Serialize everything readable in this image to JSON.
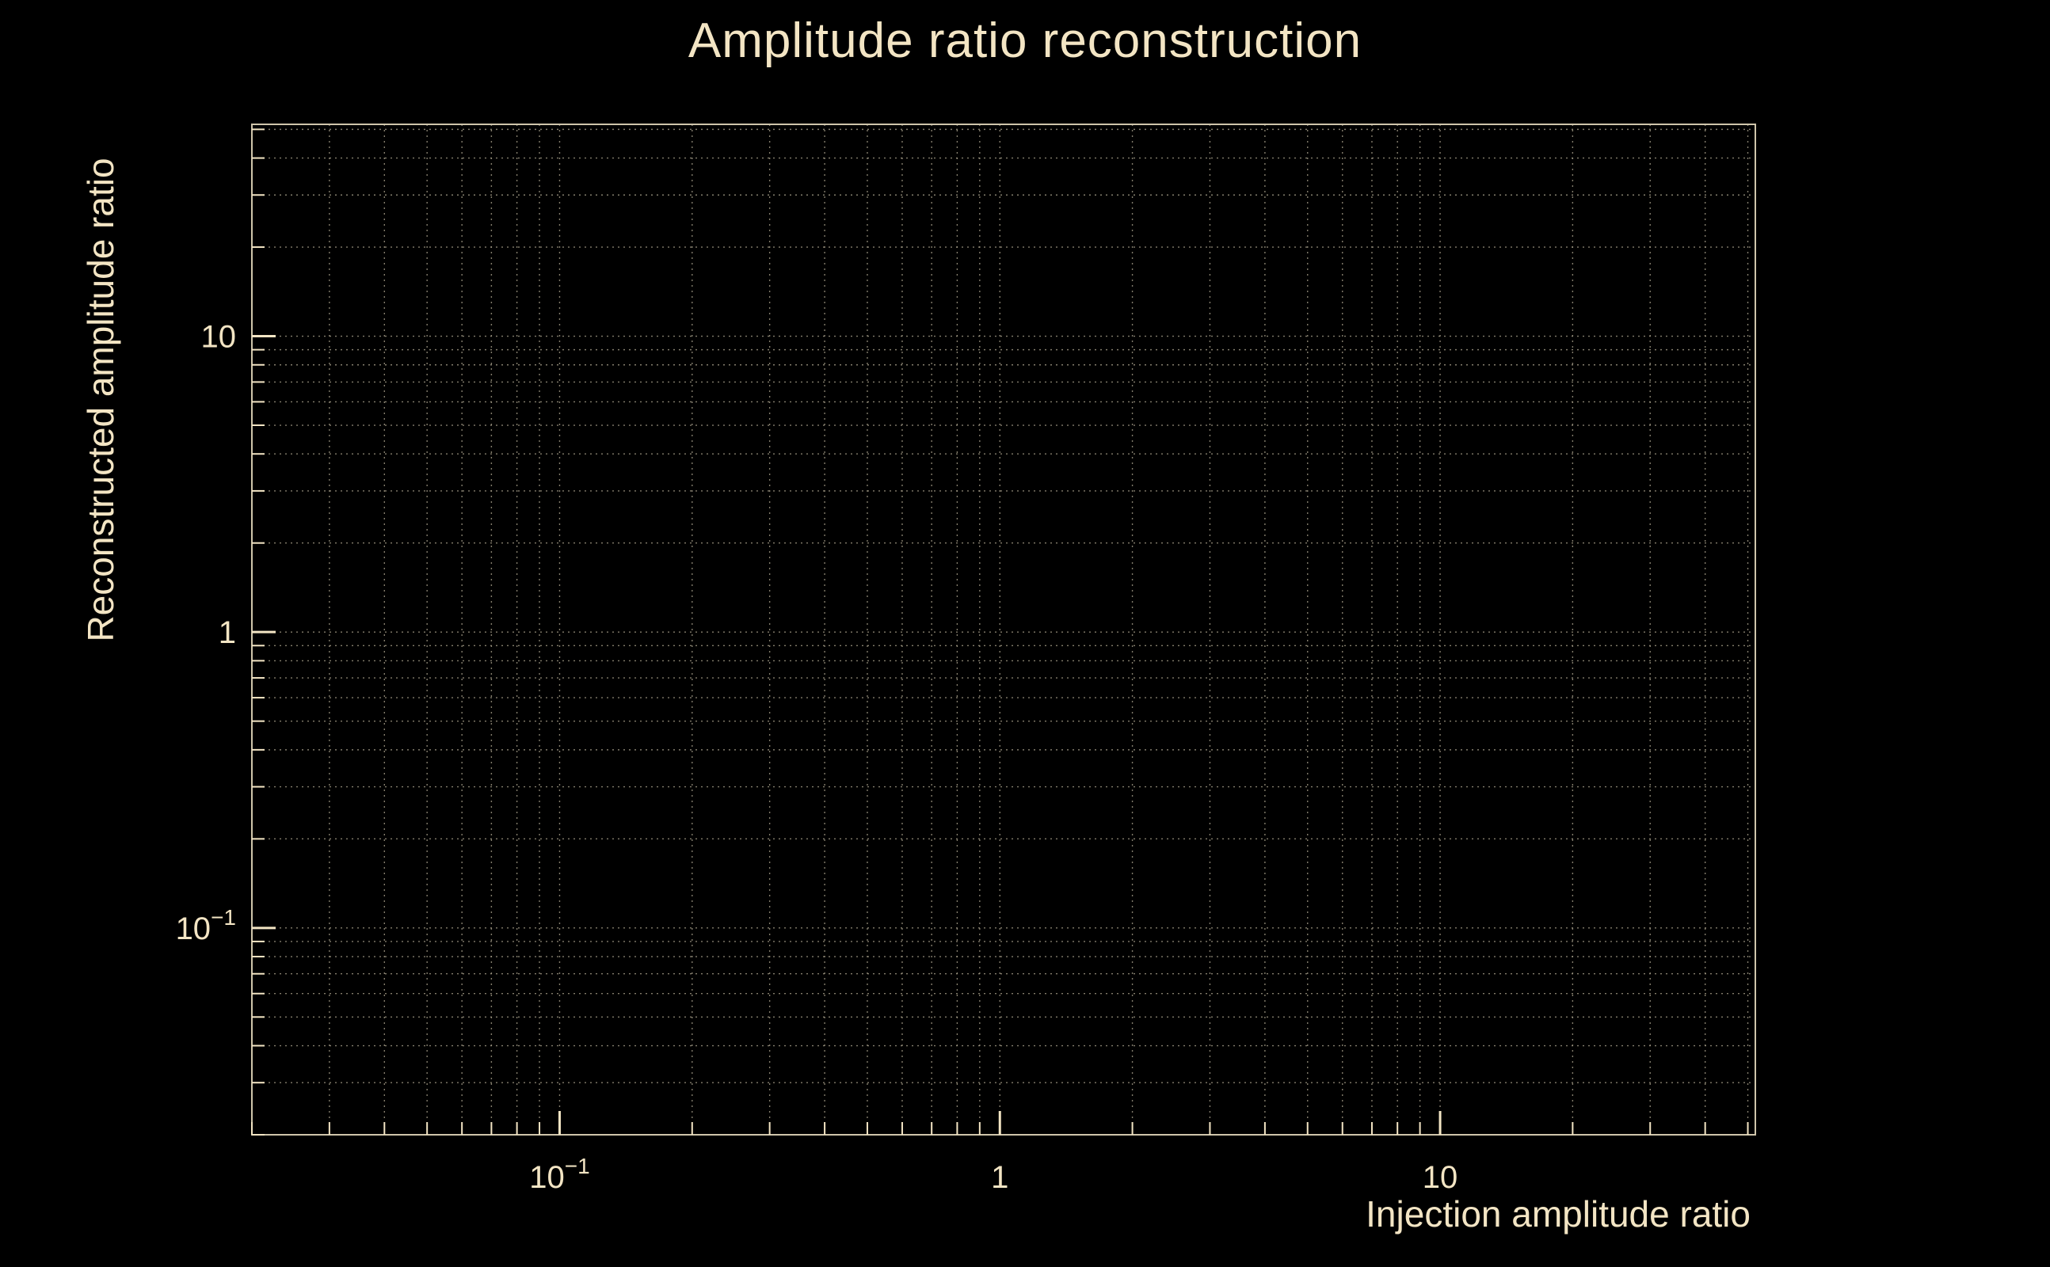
{
  "page": {
    "background": "#000000"
  },
  "chart_data": {
    "type": "scatter",
    "title": "Amplitude ratio reconstruction",
    "xlabel": "Injection amplitude ratio",
    "ylabel": "Reconstructed amplitude ratio",
    "xscale": "log",
    "yscale": "log",
    "xlim": [
      0.02,
      52
    ],
    "ylim": [
      0.02,
      52
    ],
    "grid": {
      "show": true,
      "style": "dotted",
      "color": "#9c9480"
    },
    "x_ticks": [
      {
        "value": 0.1,
        "base": "10",
        "exp": "−1"
      },
      {
        "value": 1,
        "base": "1",
        "exp": ""
      },
      {
        "value": 10,
        "base": "10",
        "exp": ""
      }
    ],
    "y_ticks": [
      {
        "value": 10,
        "base": "10",
        "exp": ""
      },
      {
        "value": 1,
        "base": "1",
        "exp": ""
      },
      {
        "value": 0.1,
        "base": "10",
        "exp": "−1"
      }
    ],
    "colors": {
      "background": "#000000",
      "text": "#f3e5c4",
      "frame": "#cfc5ab",
      "ticks": "#f3e5c4"
    },
    "series": []
  }
}
